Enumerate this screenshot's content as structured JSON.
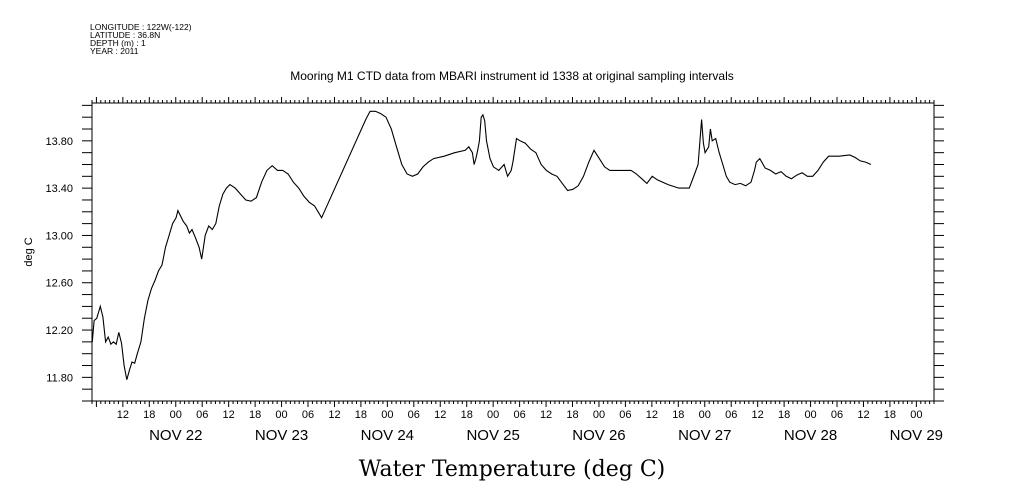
{
  "header": {
    "meta_lines": [
      "LONGITUDE : 122W(-122)",
      "LATITUDE : 36.8N",
      "DEPTH (m) : 1",
      "YEAR : 2011"
    ],
    "title": "Mooring M1 CTD data from MBARI instrument id 1338 at original sampling intervals"
  },
  "caption": "Water Temperature (deg C)",
  "chart_data": {
    "type": "line",
    "title": "Mooring M1 CTD data from MBARI instrument id 1338 at original sampling intervals",
    "xlabel": "",
    "ylabel": "deg C",
    "xlim": [
      "2011-11-21 05:00",
      "2011-11-29 04:00"
    ],
    "ylim": [
      11.6,
      14.12
    ],
    "yticks": [
      11.8,
      12.2,
      12.6,
      13.0,
      13.4,
      13.8
    ],
    "ytick_labels": [
      "11.80",
      "12.20",
      "12.60",
      "13.00",
      "13.40",
      "13.80"
    ],
    "x_hour_labels": [
      {
        "t": "2011-11-21 12:00",
        "label": "12"
      },
      {
        "t": "2011-11-21 18:00",
        "label": "18"
      },
      {
        "t": "2011-11-22 00:00",
        "label": "00"
      },
      {
        "t": "2011-11-22 06:00",
        "label": "06"
      },
      {
        "t": "2011-11-22 12:00",
        "label": "12"
      },
      {
        "t": "2011-11-22 18:00",
        "label": "18"
      },
      {
        "t": "2011-11-23 00:00",
        "label": "00"
      },
      {
        "t": "2011-11-23 06:00",
        "label": "06"
      },
      {
        "t": "2011-11-23 12:00",
        "label": "12"
      },
      {
        "t": "2011-11-23 18:00",
        "label": "18"
      },
      {
        "t": "2011-11-24 00:00",
        "label": "00"
      },
      {
        "t": "2011-11-24 06:00",
        "label": "06"
      },
      {
        "t": "2011-11-24 12:00",
        "label": "12"
      },
      {
        "t": "2011-11-24 18:00",
        "label": "18"
      },
      {
        "t": "2011-11-25 00:00",
        "label": "00"
      },
      {
        "t": "2011-11-25 06:00",
        "label": "06"
      },
      {
        "t": "2011-11-25 12:00",
        "label": "12"
      },
      {
        "t": "2011-11-25 18:00",
        "label": "18"
      },
      {
        "t": "2011-11-26 00:00",
        "label": "00"
      },
      {
        "t": "2011-11-26 06:00",
        "label": "06"
      },
      {
        "t": "2011-11-26 12:00",
        "label": "12"
      },
      {
        "t": "2011-11-26 18:00",
        "label": "18"
      },
      {
        "t": "2011-11-27 00:00",
        "label": "00"
      },
      {
        "t": "2011-11-27 06:00",
        "label": "06"
      },
      {
        "t": "2011-11-27 12:00",
        "label": "12"
      },
      {
        "t": "2011-11-27 18:00",
        "label": "18"
      },
      {
        "t": "2011-11-28 00:00",
        "label": "00"
      },
      {
        "t": "2011-11-28 06:00",
        "label": "06"
      },
      {
        "t": "2011-11-28 12:00",
        "label": "12"
      },
      {
        "t": "2011-11-28 18:00",
        "label": "18"
      },
      {
        "t": "2011-11-29 00:00",
        "label": "00"
      }
    ],
    "x_day_labels": [
      {
        "t": "2011-11-22 00:00",
        "label": "NOV 22"
      },
      {
        "t": "2011-11-23 00:00",
        "label": "NOV 23"
      },
      {
        "t": "2011-11-24 00:00",
        "label": "NOV 24"
      },
      {
        "t": "2011-11-25 00:00",
        "label": "NOV 25"
      },
      {
        "t": "2011-11-26 00:00",
        "label": "NOV 26"
      },
      {
        "t": "2011-11-27 00:00",
        "label": "NOV 27"
      },
      {
        "t": "2011-11-28 00:00",
        "label": "NOV 28"
      },
      {
        "t": "2011-11-29 00:00",
        "label": "NOV 29"
      }
    ],
    "series": [
      {
        "color": "#000000",
        "points": [
          [
            "2011-11-21 05:04",
            12.1
          ],
          [
            "2011-11-21 05:28",
            12.28
          ],
          [
            "2011-11-21 06:05",
            12.3
          ],
          [
            "2011-11-21 06:53",
            12.4
          ],
          [
            "2011-11-21 07:29",
            12.31
          ],
          [
            "2011-11-21 08:05",
            12.1
          ],
          [
            "2011-11-21 08:41",
            12.14
          ],
          [
            "2011-11-21 09:17",
            12.08
          ],
          [
            "2011-11-21 09:53",
            12.1
          ],
          [
            "2011-11-21 10:29",
            12.08
          ],
          [
            "2011-11-21 11:05",
            12.18
          ],
          [
            "2011-11-21 11:41",
            12.09
          ],
          [
            "2011-11-21 12:17",
            11.9
          ],
          [
            "2011-11-21 12:53",
            11.78
          ],
          [
            "2011-11-21 13:29",
            11.86
          ],
          [
            "2011-11-21 14:05",
            11.93
          ],
          [
            "2011-11-21 14:41",
            11.92
          ],
          [
            "2011-11-21 15:17",
            12.0
          ],
          [
            "2011-11-21 16:05",
            12.1
          ],
          [
            "2011-11-21 16:53",
            12.3
          ],
          [
            "2011-11-21 17:41",
            12.45
          ],
          [
            "2011-11-21 18:29",
            12.55
          ],
          [
            "2011-11-21 19:17",
            12.62
          ],
          [
            "2011-11-21 20:05",
            12.7
          ],
          [
            "2011-11-21 20:53",
            12.75
          ],
          [
            "2011-11-21 21:41",
            12.9
          ],
          [
            "2011-11-21 22:29",
            13.0
          ],
          [
            "2011-11-21 23:17",
            13.1
          ],
          [
            "2011-11-22 00:05",
            13.15
          ],
          [
            "2011-11-22 00:29",
            13.21
          ],
          [
            "2011-11-22 00:53",
            13.18
          ],
          [
            "2011-11-22 01:41",
            13.12
          ],
          [
            "2011-11-22 02:29",
            13.08
          ],
          [
            "2011-11-22 03:05",
            13.02
          ],
          [
            "2011-11-22 03:41",
            13.05
          ],
          [
            "2011-11-22 04:29",
            12.98
          ],
          [
            "2011-11-22 05:17",
            12.9
          ],
          [
            "2011-11-22 05:53",
            12.8
          ],
          [
            "2011-11-22 06:41",
            13.0
          ],
          [
            "2011-11-22 07:29",
            13.08
          ],
          [
            "2011-11-22 08:17",
            13.05
          ],
          [
            "2011-11-22 09:05",
            13.1
          ],
          [
            "2011-11-22 09:53",
            13.25
          ],
          [
            "2011-11-22 10:41",
            13.35
          ],
          [
            "2011-11-22 11:29",
            13.4
          ],
          [
            "2011-11-22 12:17",
            13.43
          ],
          [
            "2011-11-22 13:29",
            13.4
          ],
          [
            "2011-11-22 14:41",
            13.35
          ],
          [
            "2011-11-22 15:53",
            13.3
          ],
          [
            "2011-11-22 17:05",
            13.29
          ],
          [
            "2011-11-22 18:17",
            13.32
          ],
          [
            "2011-11-22 19:29",
            13.45
          ],
          [
            "2011-11-22 20:41",
            13.55
          ],
          [
            "2011-11-22 21:53",
            13.59
          ],
          [
            "2011-11-22 23:05",
            13.55
          ],
          [
            "2011-11-23 00:17",
            13.55
          ],
          [
            "2011-11-23 01:29",
            13.52
          ],
          [
            "2011-11-23 02:41",
            13.45
          ],
          [
            "2011-11-23 03:53",
            13.4
          ],
          [
            "2011-11-23 05:05",
            13.33
          ],
          [
            "2011-11-23 06:17",
            13.28
          ],
          [
            "2011-11-23 07:29",
            13.25
          ],
          [
            "2011-11-23 08:17",
            13.2
          ],
          [
            "2011-11-23 09:05",
            13.15
          ],
          [
            "2011-11-23 19:05",
            13.98
          ],
          [
            "2011-11-23 20:05",
            14.05
          ],
          [
            "2011-11-23 21:17",
            14.05
          ],
          [
            "2011-11-23 22:29",
            14.03
          ],
          [
            "2011-11-23 23:41",
            14.0
          ],
          [
            "2011-11-24 00:53",
            13.9
          ],
          [
            "2011-11-24 02:05",
            13.75
          ],
          [
            "2011-11-24 03:17",
            13.6
          ],
          [
            "2011-11-24 04:29",
            13.52
          ],
          [
            "2011-11-24 05:41",
            13.5
          ],
          [
            "2011-11-24 06:53",
            13.52
          ],
          [
            "2011-11-24 08:05",
            13.58
          ],
          [
            "2011-11-24 09:17",
            13.62
          ],
          [
            "2011-11-24 10:29",
            13.65
          ],
          [
            "2011-11-24 12:53",
            13.67
          ],
          [
            "2011-11-24 15:17",
            13.7
          ],
          [
            "2011-11-24 17:41",
            13.72
          ],
          [
            "2011-11-24 18:29",
            13.75
          ],
          [
            "2011-11-24 19:17",
            13.7
          ],
          [
            "2011-11-24 19:41",
            13.6
          ],
          [
            "2011-11-24 20:05",
            13.65
          ],
          [
            "2011-11-24 20:29",
            13.72
          ],
          [
            "2011-11-24 20:53",
            13.8
          ],
          [
            "2011-11-24 21:17",
            14.0
          ],
          [
            "2011-11-24 21:41",
            14.02
          ],
          [
            "2011-11-24 22:05",
            13.97
          ],
          [
            "2011-11-24 22:29",
            13.8
          ],
          [
            "2011-11-24 23:17",
            13.65
          ],
          [
            "2011-11-25 00:05",
            13.58
          ],
          [
            "2011-11-25 01:17",
            13.55
          ],
          [
            "2011-11-25 02:29",
            13.6
          ],
          [
            "2011-11-25 03:17",
            13.5
          ],
          [
            "2011-11-25 04:05",
            13.55
          ],
          [
            "2011-11-25 04:29",
            13.62
          ],
          [
            "2011-11-25 05:17",
            13.82
          ],
          [
            "2011-11-25 06:05",
            13.8
          ],
          [
            "2011-11-25 07:17",
            13.78
          ],
          [
            "2011-11-25 08:29",
            13.73
          ],
          [
            "2011-11-25 09:41",
            13.7
          ],
          [
            "2011-11-25 10:53",
            13.6
          ],
          [
            "2011-11-25 12:05",
            13.55
          ],
          [
            "2011-11-25 13:17",
            13.52
          ],
          [
            "2011-11-25 14:29",
            13.5
          ],
          [
            "2011-11-25 15:41",
            13.44
          ],
          [
            "2011-11-25 16:53",
            13.38
          ],
          [
            "2011-11-25 18:05",
            13.39
          ],
          [
            "2011-11-25 19:17",
            13.42
          ],
          [
            "2011-11-25 20:29",
            13.5
          ],
          [
            "2011-11-25 21:41",
            13.62
          ],
          [
            "2011-11-25 22:53",
            13.72
          ],
          [
            "2011-11-26 00:05",
            13.65
          ],
          [
            "2011-11-26 01:17",
            13.58
          ],
          [
            "2011-11-26 02:29",
            13.55
          ],
          [
            "2011-11-26 04:53",
            13.55
          ],
          [
            "2011-11-26 07:17",
            13.55
          ],
          [
            "2011-11-26 08:29",
            13.52
          ],
          [
            "2011-11-26 09:41",
            13.48
          ],
          [
            "2011-11-26 10:53",
            13.44
          ],
          [
            "2011-11-26 12:05",
            13.5
          ],
          [
            "2011-11-26 13:17",
            13.47
          ],
          [
            "2011-11-26 15:41",
            13.43
          ],
          [
            "2011-11-26 18:05",
            13.4
          ],
          [
            "2011-11-26 20:29",
            13.4
          ],
          [
            "2011-11-26 21:41",
            13.52
          ],
          [
            "2011-11-26 22:29",
            13.6
          ],
          [
            "2011-11-26 23:17",
            13.98
          ],
          [
            "2011-11-26 23:41",
            13.78
          ],
          [
            "2011-11-27 00:05",
            13.7
          ],
          [
            "2011-11-27 00:53",
            13.75
          ],
          [
            "2011-11-27 01:17",
            13.9
          ],
          [
            "2011-11-27 01:41",
            13.8
          ],
          [
            "2011-11-27 02:29",
            13.82
          ],
          [
            "2011-11-27 03:17",
            13.7
          ],
          [
            "2011-11-27 04:05",
            13.6
          ],
          [
            "2011-11-27 04:53",
            13.5
          ],
          [
            "2011-11-27 05:41",
            13.45
          ],
          [
            "2011-11-27 06:53",
            13.43
          ],
          [
            "2011-11-27 08:05",
            13.44
          ],
          [
            "2011-11-27 09:17",
            13.42
          ],
          [
            "2011-11-27 10:29",
            13.45
          ],
          [
            "2011-11-27 11:17",
            13.55
          ],
          [
            "2011-11-27 11:41",
            13.62
          ],
          [
            "2011-11-27 12:29",
            13.65
          ],
          [
            "2011-11-27 13:41",
            13.57
          ],
          [
            "2011-11-27 14:53",
            13.55
          ],
          [
            "2011-11-27 16:05",
            13.52
          ],
          [
            "2011-11-27 17:17",
            13.54
          ],
          [
            "2011-11-27 18:29",
            13.5
          ],
          [
            "2011-11-27 19:41",
            13.48
          ],
          [
            "2011-11-27 20:53",
            13.51
          ],
          [
            "2011-11-27 22:05",
            13.53
          ],
          [
            "2011-11-27 23:17",
            13.5
          ],
          [
            "2011-11-28 00:29",
            13.5
          ],
          [
            "2011-11-28 01:41",
            13.55
          ],
          [
            "2011-11-28 02:53",
            13.62
          ],
          [
            "2011-11-28 04:05",
            13.67
          ],
          [
            "2011-11-28 06:29",
            13.67
          ],
          [
            "2011-11-28 08:53",
            13.68
          ],
          [
            "2011-11-28 10:05",
            13.66
          ],
          [
            "2011-11-28 11:17",
            13.63
          ],
          [
            "2011-11-28 12:29",
            13.62
          ],
          [
            "2011-11-28 13:41",
            13.6
          ]
        ]
      }
    ]
  }
}
